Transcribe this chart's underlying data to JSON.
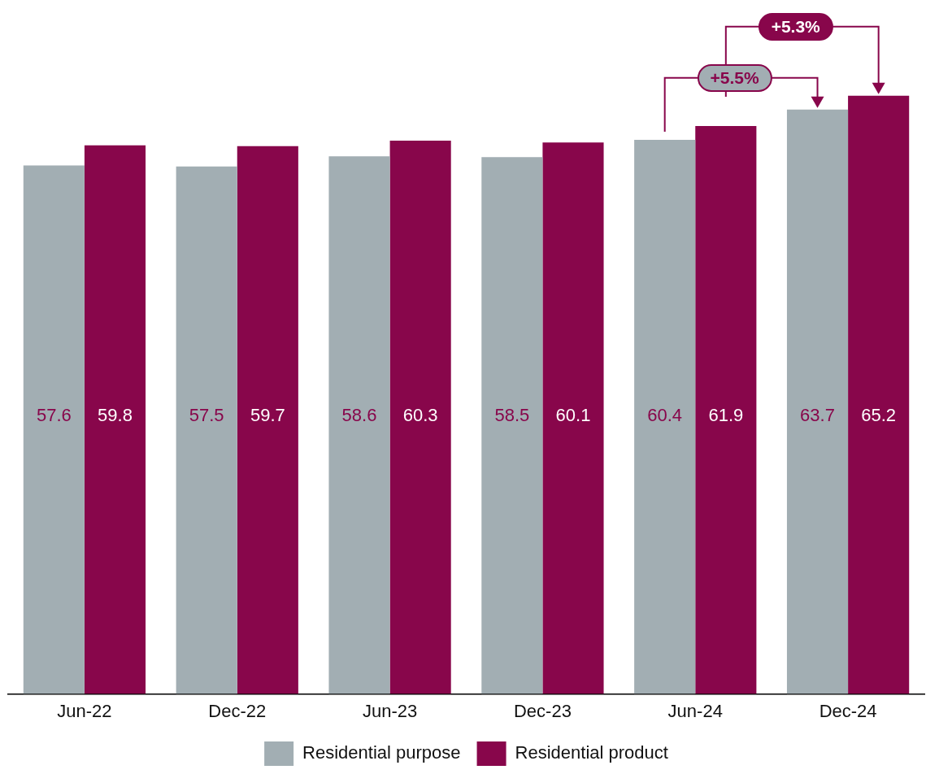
{
  "chart_data": {
    "type": "bar",
    "categories": [
      "Jun-22",
      "Dec-22",
      "Jun-23",
      "Dec-23",
      "Jun-24",
      "Dec-24"
    ],
    "series": [
      {
        "name": "Residential purpose",
        "color": "#a2aeb3",
        "values": [
          57.6,
          57.5,
          58.6,
          58.5,
          60.4,
          63.7
        ]
      },
      {
        "name": "Residential product",
        "color": "#88064b",
        "values": [
          59.8,
          59.7,
          60.3,
          60.1,
          61.9,
          65.2
        ]
      }
    ],
    "data_labels": true,
    "legend": "bottom",
    "grid": false,
    "annotations": [
      "+5.5%",
      "+5.3%"
    ]
  }
}
